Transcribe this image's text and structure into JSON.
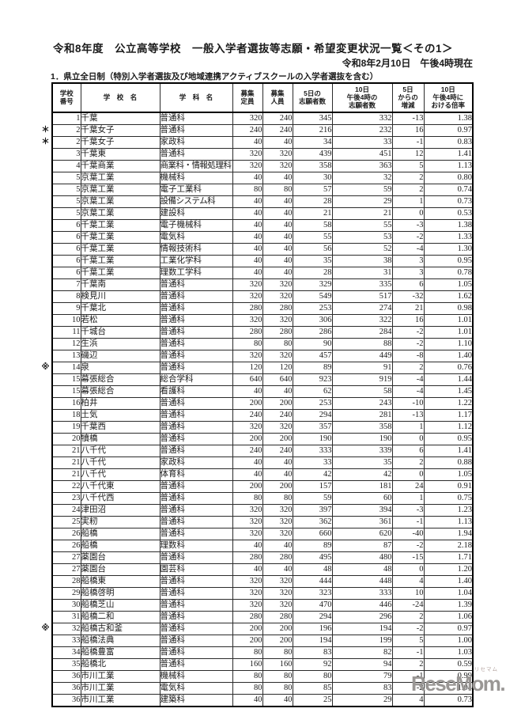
{
  "title": "令和8年度　公立高等学校　一般入学者選抜等志願・希望変更状況一覧＜その1＞",
  "datetime": "令和8年2月10日　午後4時現在",
  "section": "1．県立全日制（特別入学者選抜及び地域連携アクティブスクールの入学者選抜を含む）",
  "table": {
    "headers": [
      "学校\n番号",
      "学　校　名",
      "学　科　名",
      "募集\n定員",
      "募集\n人員",
      "5日の\n志願者数",
      "10日\n午後4時の\n志願者数",
      "5日\nからの\n増減",
      "10日\n午後4時に\nおける倍率"
    ],
    "rows": [
      {
        "mark": "",
        "no": "1",
        "name": "千葉",
        "dept": "普通科",
        "cap": "320",
        "rec": "240",
        "d5": "345",
        "d10": "332",
        "diff": "-13",
        "rate": "1.38"
      },
      {
        "mark": "＊",
        "no": "2",
        "name": "千葉女子",
        "dept": "普通科",
        "cap": "240",
        "rec": "240",
        "d5": "216",
        "d10": "232",
        "diff": "16",
        "rate": "0.97"
      },
      {
        "mark": "＊",
        "no": "2",
        "name": "千葉女子",
        "dept": "家政科",
        "cap": "40",
        "rec": "40",
        "d5": "34",
        "d10": "33",
        "diff": "-1",
        "rate": "0.83"
      },
      {
        "mark": "",
        "no": "3",
        "name": "千葉東",
        "dept": "普通科",
        "cap": "320",
        "rec": "320",
        "d5": "439",
        "d10": "451",
        "diff": "12",
        "rate": "1.41"
      },
      {
        "mark": "",
        "no": "4",
        "name": "千葉商業",
        "dept": "商業科・情報処理科",
        "cap": "320",
        "rec": "320",
        "d5": "358",
        "d10": "363",
        "diff": "5",
        "rate": "1.13"
      },
      {
        "mark": "",
        "no": "5",
        "name": "京葉工業",
        "dept": "機械科",
        "cap": "40",
        "rec": "40",
        "d5": "30",
        "d10": "32",
        "diff": "2",
        "rate": "0.80"
      },
      {
        "mark": "",
        "no": "5",
        "name": "京葉工業",
        "dept": "電子工業科",
        "cap": "80",
        "rec": "80",
        "d5": "57",
        "d10": "59",
        "diff": "2",
        "rate": "0.74"
      },
      {
        "mark": "",
        "no": "5",
        "name": "京葉工業",
        "dept": "設備システム科",
        "cap": "40",
        "rec": "40",
        "d5": "28",
        "d10": "29",
        "diff": "1",
        "rate": "0.73"
      },
      {
        "mark": "",
        "no": "5",
        "name": "京葉工業",
        "dept": "建設科",
        "cap": "40",
        "rec": "40",
        "d5": "21",
        "d10": "21",
        "diff": "0",
        "rate": "0.53"
      },
      {
        "mark": "",
        "no": "6",
        "name": "千葉工業",
        "dept": "電子機械科",
        "cap": "40",
        "rec": "40",
        "d5": "58",
        "d10": "55",
        "diff": "-3",
        "rate": "1.38"
      },
      {
        "mark": "",
        "no": "6",
        "name": "千葉工業",
        "dept": "電気科",
        "cap": "40",
        "rec": "40",
        "d5": "55",
        "d10": "53",
        "diff": "-2",
        "rate": "1.33"
      },
      {
        "mark": "",
        "no": "6",
        "name": "千葉工業",
        "dept": "情報技術科",
        "cap": "40",
        "rec": "40",
        "d5": "56",
        "d10": "52",
        "diff": "-4",
        "rate": "1.30"
      },
      {
        "mark": "",
        "no": "6",
        "name": "千葉工業",
        "dept": "工業化学科",
        "cap": "40",
        "rec": "40",
        "d5": "35",
        "d10": "38",
        "diff": "3",
        "rate": "0.95"
      },
      {
        "mark": "",
        "no": "6",
        "name": "千葉工業",
        "dept": "理数工学科",
        "cap": "40",
        "rec": "40",
        "d5": "28",
        "d10": "31",
        "diff": "3",
        "rate": "0.78"
      },
      {
        "mark": "",
        "no": "7",
        "name": "千葉南",
        "dept": "普通科",
        "cap": "320",
        "rec": "320",
        "d5": "329",
        "d10": "335",
        "diff": "6",
        "rate": "1.05"
      },
      {
        "mark": "",
        "no": "8",
        "name": "検見川",
        "dept": "普通科",
        "cap": "320",
        "rec": "320",
        "d5": "549",
        "d10": "517",
        "diff": "-32",
        "rate": "1.62"
      },
      {
        "mark": "",
        "no": "9",
        "name": "千葉北",
        "dept": "普通科",
        "cap": "280",
        "rec": "280",
        "d5": "253",
        "d10": "274",
        "diff": "21",
        "rate": "0.98"
      },
      {
        "mark": "",
        "no": "10",
        "name": "若松",
        "dept": "普通科",
        "cap": "320",
        "rec": "320",
        "d5": "306",
        "d10": "322",
        "diff": "16",
        "rate": "1.01"
      },
      {
        "mark": "",
        "no": "11",
        "name": "千城台",
        "dept": "普通科",
        "cap": "280",
        "rec": "280",
        "d5": "286",
        "d10": "284",
        "diff": "-2",
        "rate": "1.01"
      },
      {
        "mark": "",
        "no": "12",
        "name": "生浜",
        "dept": "普通科",
        "cap": "80",
        "rec": "80",
        "d5": "90",
        "d10": "88",
        "diff": "-2",
        "rate": "1.10"
      },
      {
        "mark": "",
        "no": "13",
        "name": "磯辺",
        "dept": "普通科",
        "cap": "320",
        "rec": "320",
        "d5": "457",
        "d10": "449",
        "diff": "-8",
        "rate": "1.40"
      },
      {
        "mark": "※",
        "no": "14",
        "name": "泉",
        "dept": "普通科",
        "cap": "120",
        "rec": "120",
        "d5": "89",
        "d10": "91",
        "diff": "2",
        "rate": "0.76"
      },
      {
        "mark": "",
        "no": "15",
        "name": "幕張総合",
        "dept": "総合学科",
        "cap": "640",
        "rec": "640",
        "d5": "923",
        "d10": "919",
        "diff": "-4",
        "rate": "1.44"
      },
      {
        "mark": "",
        "no": "15",
        "name": "幕張総合",
        "dept": "看護科",
        "cap": "40",
        "rec": "40",
        "d5": "62",
        "d10": "58",
        "diff": "-4",
        "rate": "1.45"
      },
      {
        "mark": "",
        "no": "16",
        "name": "柏井",
        "dept": "普通科",
        "cap": "200",
        "rec": "200",
        "d5": "253",
        "d10": "243",
        "diff": "-10",
        "rate": "1.22"
      },
      {
        "mark": "",
        "no": "18",
        "name": "土気",
        "dept": "普通科",
        "cap": "240",
        "rec": "240",
        "d5": "294",
        "d10": "281",
        "diff": "-13",
        "rate": "1.17"
      },
      {
        "mark": "",
        "no": "19",
        "name": "千葉西",
        "dept": "普通科",
        "cap": "320",
        "rec": "320",
        "d5": "357",
        "d10": "358",
        "diff": "1",
        "rate": "1.12"
      },
      {
        "mark": "",
        "no": "20",
        "name": "犢橋",
        "dept": "普通科",
        "cap": "200",
        "rec": "200",
        "d5": "190",
        "d10": "190",
        "diff": "0",
        "rate": "0.95"
      },
      {
        "mark": "",
        "no": "21",
        "name": "八千代",
        "dept": "普通科",
        "cap": "240",
        "rec": "240",
        "d5": "333",
        "d10": "339",
        "diff": "6",
        "rate": "1.41"
      },
      {
        "mark": "",
        "no": "21",
        "name": "八千代",
        "dept": "家政科",
        "cap": "40",
        "rec": "40",
        "d5": "33",
        "d10": "35",
        "diff": "2",
        "rate": "0.88"
      },
      {
        "mark": "",
        "no": "21",
        "name": "八千代",
        "dept": "体育科",
        "cap": "40",
        "rec": "40",
        "d5": "42",
        "d10": "42",
        "diff": "0",
        "rate": "1.05"
      },
      {
        "mark": "",
        "no": "22",
        "name": "八千代東",
        "dept": "普通科",
        "cap": "200",
        "rec": "200",
        "d5": "157",
        "d10": "181",
        "diff": "24",
        "rate": "0.91"
      },
      {
        "mark": "",
        "no": "23",
        "name": "八千代西",
        "dept": "普通科",
        "cap": "80",
        "rec": "80",
        "d5": "59",
        "d10": "60",
        "diff": "1",
        "rate": "0.75"
      },
      {
        "mark": "",
        "no": "24",
        "name": "津田沼",
        "dept": "普通科",
        "cap": "320",
        "rec": "320",
        "d5": "397",
        "d10": "394",
        "diff": "-3",
        "rate": "1.23"
      },
      {
        "mark": "",
        "no": "25",
        "name": "実籾",
        "dept": "普通科",
        "cap": "320",
        "rec": "320",
        "d5": "362",
        "d10": "361",
        "diff": "-1",
        "rate": "1.13"
      },
      {
        "mark": "",
        "no": "26",
        "name": "船橋",
        "dept": "普通科",
        "cap": "320",
        "rec": "320",
        "d5": "660",
        "d10": "620",
        "diff": "-40",
        "rate": "1.94"
      },
      {
        "mark": "",
        "no": "26",
        "name": "船橋",
        "dept": "理数科",
        "cap": "40",
        "rec": "40",
        "d5": "89",
        "d10": "87",
        "diff": "-2",
        "rate": "2.18"
      },
      {
        "mark": "",
        "no": "27",
        "name": "薬園台",
        "dept": "普通科",
        "cap": "280",
        "rec": "280",
        "d5": "495",
        "d10": "480",
        "diff": "-15",
        "rate": "1.71"
      },
      {
        "mark": "",
        "no": "27",
        "name": "薬園台",
        "dept": "園芸科",
        "cap": "40",
        "rec": "40",
        "d5": "48",
        "d10": "48",
        "diff": "0",
        "rate": "1.20"
      },
      {
        "mark": "",
        "no": "28",
        "name": "船橋東",
        "dept": "普通科",
        "cap": "320",
        "rec": "320",
        "d5": "444",
        "d10": "448",
        "diff": "4",
        "rate": "1.40"
      },
      {
        "mark": "",
        "no": "29",
        "name": "船橋啓明",
        "dept": "普通科",
        "cap": "320",
        "rec": "320",
        "d5": "323",
        "d10": "333",
        "diff": "10",
        "rate": "1.04"
      },
      {
        "mark": "",
        "no": "30",
        "name": "船橋芝山",
        "dept": "普通科",
        "cap": "320",
        "rec": "320",
        "d5": "470",
        "d10": "446",
        "diff": "-24",
        "rate": "1.39"
      },
      {
        "mark": "",
        "no": "31",
        "name": "船橋二和",
        "dept": "普通科",
        "cap": "280",
        "rec": "280",
        "d5": "294",
        "d10": "296",
        "diff": "2",
        "rate": "1.06"
      },
      {
        "mark": "※",
        "no": "32",
        "name": "船橋古和釜",
        "dept": "普通科",
        "cap": "200",
        "rec": "200",
        "d5": "196",
        "d10": "194",
        "diff": "-2",
        "rate": "0.97"
      },
      {
        "mark": "",
        "no": "33",
        "name": "船橋法典",
        "dept": "普通科",
        "cap": "200",
        "rec": "200",
        "d5": "194",
        "d10": "199",
        "diff": "5",
        "rate": "1.00"
      },
      {
        "mark": "",
        "no": "34",
        "name": "船橋豊富",
        "dept": "普通科",
        "cap": "80",
        "rec": "80",
        "d5": "83",
        "d10": "82",
        "diff": "-1",
        "rate": "1.03"
      },
      {
        "mark": "",
        "no": "35",
        "name": "船橋北",
        "dept": "普通科",
        "cap": "160",
        "rec": "160",
        "d5": "92",
        "d10": "94",
        "diff": "2",
        "rate": "0.59"
      },
      {
        "mark": "",
        "no": "36",
        "name": "市川工業",
        "dept": "機械科",
        "cap": "80",
        "rec": "80",
        "d5": "80",
        "d10": "79",
        "diff": "-1",
        "rate": "0.99"
      },
      {
        "mark": "",
        "no": "36",
        "name": "市川工業",
        "dept": "電気科",
        "cap": "80",
        "rec": "80",
        "d5": "85",
        "d10": "83",
        "diff": "-2",
        "rate": "1.04"
      },
      {
        "mark": "",
        "no": "36",
        "name": "市川工業",
        "dept": "建築科",
        "cap": "40",
        "rec": "40",
        "d5": "25",
        "d10": "29",
        "diff": "4",
        "rate": "0.73"
      }
    ]
  },
  "logo": {
    "text": "ReseMom.",
    "ruby": "リセマム",
    "color": "#9a9795",
    "ruby_color": "#b4a4a0"
  }
}
